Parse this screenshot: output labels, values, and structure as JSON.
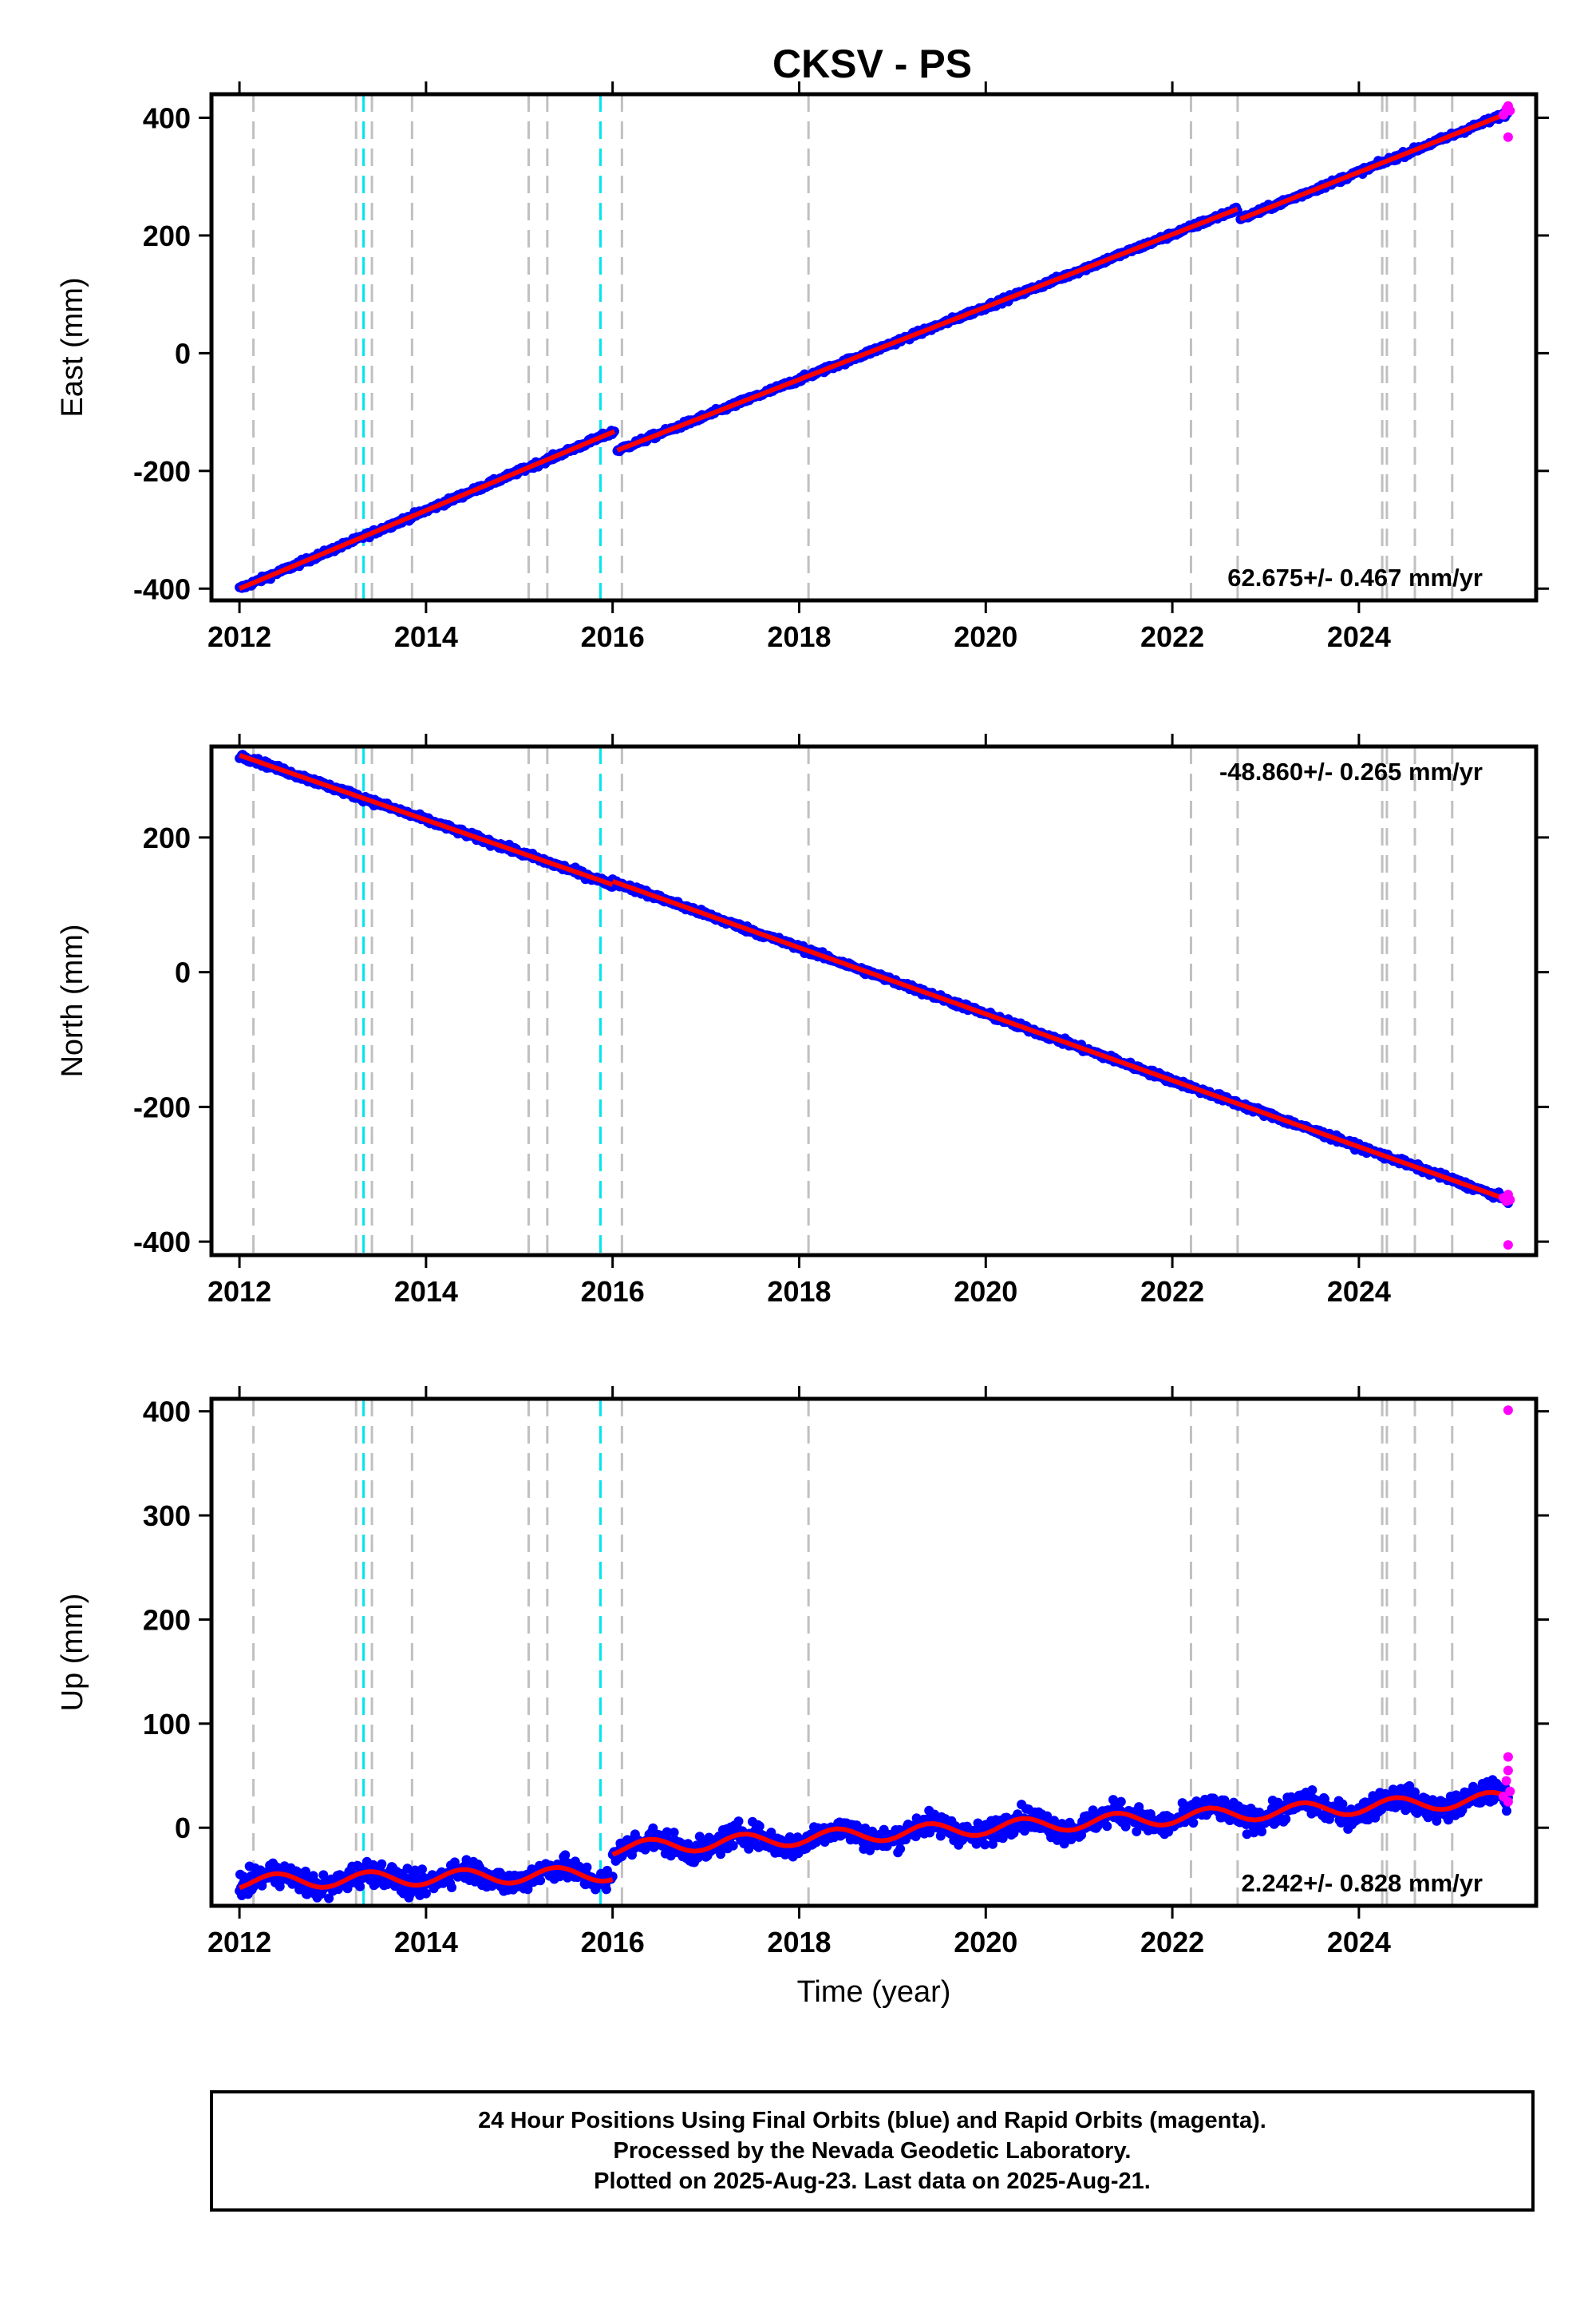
{
  "title": "CKSV - PS",
  "colors": {
    "final": "#0000ff",
    "rapid": "#ff00ff",
    "model": "#ff0000",
    "event_gray": "#c0c0c0",
    "event_cyan": "#00e5ee"
  },
  "chart_data": [
    {
      "type": "scatter",
      "ylabel": "East (mm)",
      "xlabel": "",
      "xlim": [
        2011.7,
        2025.9
      ],
      "ylim": [
        -420,
        440
      ],
      "x_ticks": [
        2012,
        2014,
        2016,
        2018,
        2020,
        2022,
        2024
      ],
      "y_ticks": [
        -400,
        -200,
        0,
        200,
        400
      ],
      "rate_label": "62.675+/- 0.467 mm/yr",
      "rate_position": "bottom-right",
      "series": [
        {
          "color": "blue",
          "model": "linear",
          "segments": [
            {
              "x": [
                2012.0,
                2016.02
              ],
              "y": [
                -400,
                -133
              ]
            },
            {
              "x": [
                2016.05,
                2022.7
              ],
              "y": [
                -165,
                245
              ]
            },
            {
              "x": [
                2022.73,
                2025.6
              ],
              "y": [
                228,
                408
              ]
            }
          ]
        },
        {
          "color": "magenta",
          "points": [
            [
              2025.55,
              405
            ],
            [
              2025.58,
              415
            ],
            [
              2025.6,
              420
            ],
            [
              2025.62,
              412
            ],
            [
              2025.6,
              367
            ]
          ]
        }
      ]
    },
    {
      "type": "scatter",
      "ylabel": "North (mm)",
      "xlabel": "",
      "xlim": [
        2011.7,
        2025.9
      ],
      "ylim": [
        -420,
        335
      ],
      "x_ticks": [
        2012,
        2014,
        2016,
        2018,
        2020,
        2022,
        2024
      ],
      "y_ticks": [
        -400,
        -200,
        0,
        200
      ],
      "rate_label": "-48.860+/- 0.265 mm/yr",
      "rate_position": "top-right",
      "series": [
        {
          "color": "blue",
          "model": "linear",
          "segments": [
            {
              "x": [
                2012.0,
                2016.0
              ],
              "y": [
                322,
                130
              ]
            },
            {
              "x": [
                2016.0,
                2025.6
              ],
              "y": [
                135,
                -338
              ]
            }
          ]
        },
        {
          "color": "magenta",
          "points": [
            [
              2025.55,
              -335
            ],
            [
              2025.58,
              -340
            ],
            [
              2025.6,
              -330
            ],
            [
              2025.62,
              -338
            ],
            [
              2025.6,
              -405
            ]
          ]
        }
      ]
    },
    {
      "type": "scatter",
      "ylabel": "Up (mm)",
      "xlabel": "Time (year)",
      "xlim": [
        2011.7,
        2025.9
      ],
      "ylim": [
        -75,
        412
      ],
      "x_ticks": [
        2012,
        2014,
        2016,
        2018,
        2020,
        2022,
        2024
      ],
      "y_ticks": [
        0,
        100,
        200,
        300,
        400
      ],
      "rate_label": "2.242+/- 0.828 mm/yr",
      "rate_position": "bottom-right",
      "series": [
        {
          "color": "blue",
          "model": "linear+annual",
          "segments": [
            {
              "x": [
                2012.0,
                2016.0
              ],
              "y": [
                -52,
                -44
              ]
            },
            {
              "x": [
                2016.0,
                2025.6
              ],
              "y": [
                -20,
                28
              ]
            }
          ]
        },
        {
          "color": "magenta",
          "points": [
            [
              2025.55,
              30
            ],
            [
              2025.58,
              45
            ],
            [
              2025.6,
              55
            ],
            [
              2025.6,
              68
            ],
            [
              2025.62,
              35
            ],
            [
              2025.6,
              25
            ],
            [
              2025.6,
              401
            ]
          ]
        }
      ]
    }
  ],
  "events_gray": [
    2012.15,
    2013.25,
    2013.42,
    2013.85,
    2015.1,
    2015.3,
    2016.1,
    2018.1,
    2022.2,
    2022.7,
    2024.25,
    2024.3,
    2024.6,
    2025.0
  ],
  "events_cyan": [
    2013.33,
    2015.87
  ],
  "footer": {
    "line1": "24 Hour Positions Using Final Orbits (blue) and Rapid Orbits (magenta).",
    "line2": "Processed by the Nevada Geodetic Laboratory.",
    "line3": "Plotted on 2025-Aug-23. Last data on 2025-Aug-21."
  }
}
